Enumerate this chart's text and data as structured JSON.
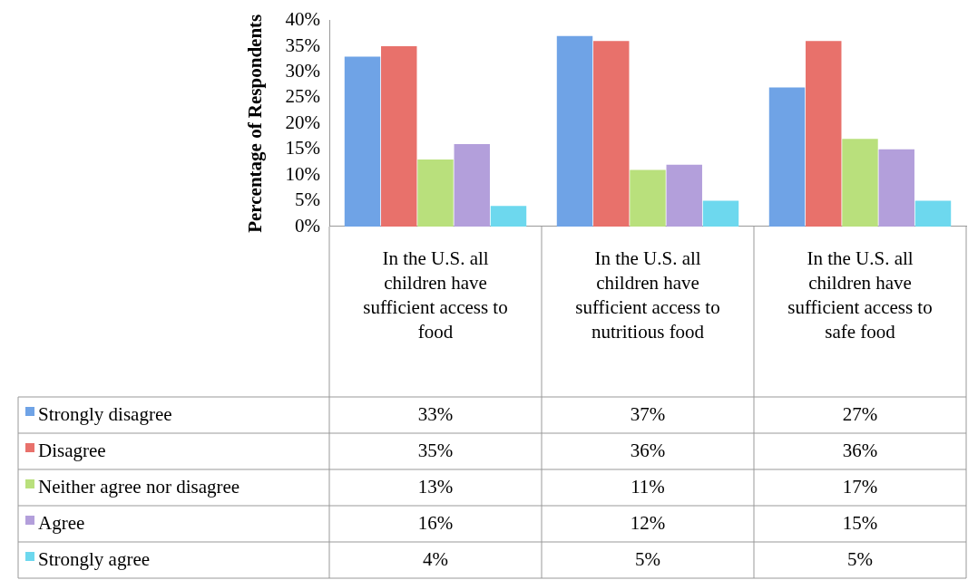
{
  "chart_data": {
    "type": "bar",
    "ylabel": "Percentage of Respondents",
    "categories": [
      "In the U.S. all children have sufficient access to food",
      "In the U.S. all children have sufficient access to nutritious food",
      "In the U.S. all children have sufficient access to safe food"
    ],
    "series": [
      {
        "name": "Strongly disagree",
        "color": "#6fa3e6",
        "values": [
          33,
          37,
          27
        ]
      },
      {
        "name": "Disagree",
        "color": "#e8716b",
        "values": [
          35,
          36,
          36
        ]
      },
      {
        "name": "Neither agree nor disagree",
        "color": "#b9e07c",
        "values": [
          13,
          11,
          17
        ]
      },
      {
        "name": "Agree",
        "color": "#b39fdb",
        "values": [
          16,
          12,
          15
        ]
      },
      {
        "name": "Strongly agree",
        "color": "#6dd8ee",
        "values": [
          4,
          5,
          5
        ]
      }
    ],
    "value_labels": [
      [
        "33%",
        "37%",
        "27%"
      ],
      [
        "35%",
        "36%",
        "36%"
      ],
      [
        "13%",
        "11%",
        "17%"
      ],
      [
        "16%",
        "12%",
        "15%"
      ],
      [
        "4%",
        "5%",
        "5%"
      ]
    ],
    "ylim": [
      0,
      40
    ],
    "yticks": [
      {
        "value": 0,
        "label": "0%"
      },
      {
        "value": 5,
        "label": "5%"
      },
      {
        "value": 10,
        "label": "10%"
      },
      {
        "value": 15,
        "label": "15%"
      },
      {
        "value": 20,
        "label": "20%"
      },
      {
        "value": 25,
        "label": "25%"
      },
      {
        "value": 30,
        "label": "30%"
      },
      {
        "value": 35,
        "label": "35%"
      },
      {
        "value": 40,
        "label": "40%"
      }
    ],
    "grid": false,
    "legend": "bottom left"
  }
}
